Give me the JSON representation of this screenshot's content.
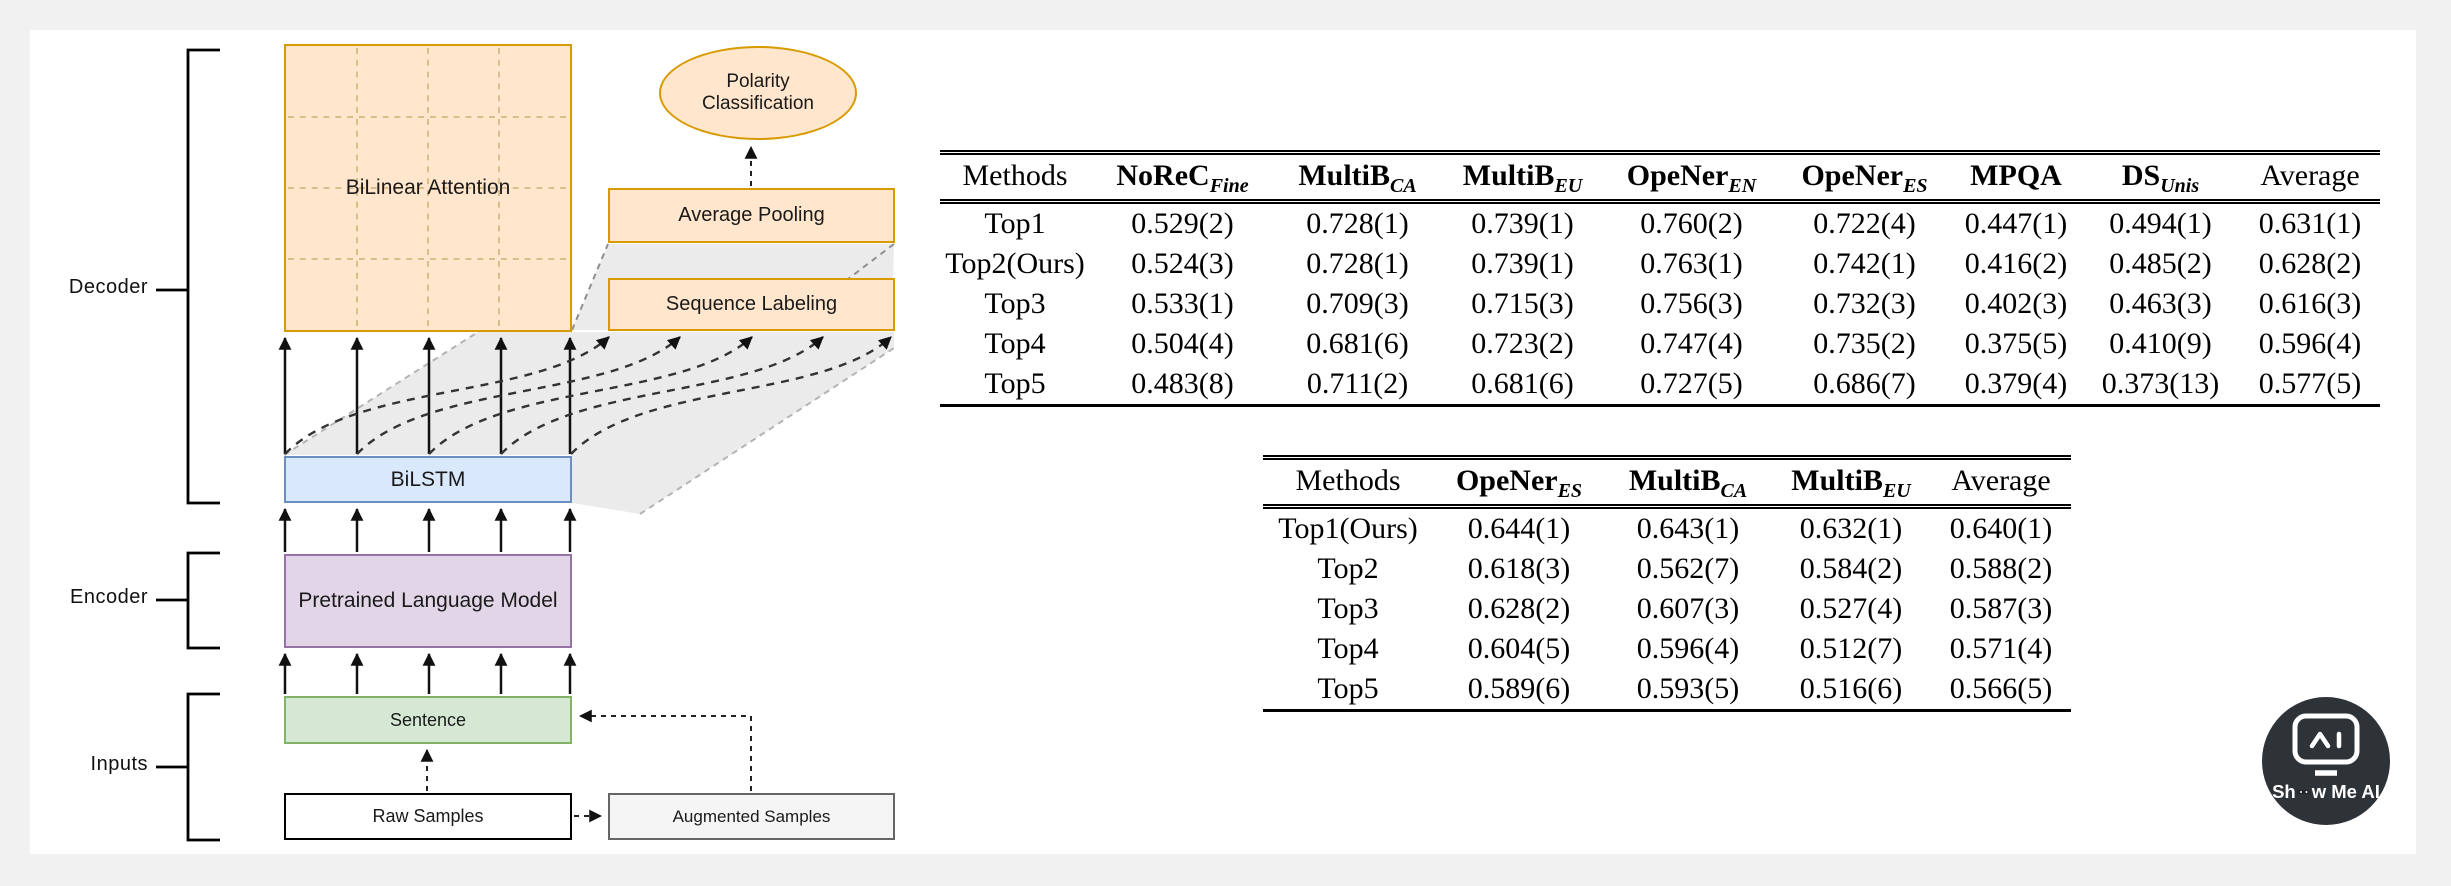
{
  "page": {
    "background_color": "#f1f1f1",
    "canvas_color": "#ffffff"
  },
  "diagram": {
    "group_labels": {
      "decoder": "Decoder",
      "encoder": "Encoder",
      "inputs": "Inputs"
    },
    "nodes": {
      "bilinear_attention": {
        "label": "BiLinear Attention",
        "fill": "#ffe6cc",
        "stroke": "#d79b00"
      },
      "polarity_classification": {
        "label": "Polarity Classification",
        "fill": "#ffe6cc",
        "stroke": "#d79b00"
      },
      "average_pooling": {
        "label": "Average Pooling",
        "fill": "#ffe6cc",
        "stroke": "#d79b00"
      },
      "sequence_labeling": {
        "label": "Sequence Labeling",
        "fill": "#ffe6cc",
        "stroke": "#d79b00"
      },
      "bilstm": {
        "label": "BiLSTM",
        "fill": "#dae8fc",
        "stroke": "#6c8ebf"
      },
      "pretrained_language_model": {
        "label": "Pretrained Language Model",
        "fill": "#e1d5e7",
        "stroke": "#9673a6"
      },
      "sentence": {
        "label": "Sentence",
        "fill": "#d5e8d4",
        "stroke": "#82b366"
      },
      "raw_samples": {
        "label": "Raw Samples",
        "fill": "#ffffff",
        "stroke": "#000000"
      },
      "augmented_samples": {
        "label": "Augmented Samples",
        "fill": "#f5f5f5",
        "stroke": "#666666"
      }
    }
  },
  "tables": {
    "main": {
      "headers": [
        {
          "label": "Methods",
          "bold": false
        },
        {
          "label": "NoReC",
          "sub": "Fine",
          "bold": true
        },
        {
          "label": "MultiB",
          "sub": "CA",
          "bold": true
        },
        {
          "label": "MultiB",
          "sub": "EU",
          "bold": true
        },
        {
          "label": "OpeNer",
          "sub": "EN",
          "bold": true
        },
        {
          "label": "OpeNer",
          "sub": "ES",
          "bold": true
        },
        {
          "label": "MPQA",
          "bold": true
        },
        {
          "label": "DS",
          "sub": "Unis",
          "bold": true
        },
        {
          "label": "Average",
          "bold": false
        }
      ],
      "rows": [
        [
          "Top1",
          "0.529(2)",
          "0.728(1)",
          "0.739(1)",
          "0.760(2)",
          "0.722(4)",
          "0.447(1)",
          "0.494(1)",
          "0.631(1)"
        ],
        [
          "Top2(Ours)",
          "0.524(3)",
          "0.728(1)",
          "0.739(1)",
          "0.763(1)",
          "0.742(1)",
          "0.416(2)",
          "0.485(2)",
          "0.628(2)"
        ],
        [
          "Top3",
          "0.533(1)",
          "0.709(3)",
          "0.715(3)",
          "0.756(3)",
          "0.732(3)",
          "0.402(3)",
          "0.463(3)",
          "0.616(3)"
        ],
        [
          "Top4",
          "0.504(4)",
          "0.681(6)",
          "0.723(2)",
          "0.747(4)",
          "0.735(2)",
          "0.375(5)",
          "0.410(9)",
          "0.596(4)"
        ],
        [
          "Top5",
          "0.483(8)",
          "0.711(2)",
          "0.681(6)",
          "0.727(5)",
          "0.686(7)",
          "0.379(4)",
          "0.373(13)",
          "0.577(5)"
        ]
      ]
    },
    "secondary": {
      "headers": [
        {
          "label": "Methods",
          "bold": false
        },
        {
          "label": "OpeNer",
          "sub": "ES",
          "bold": true
        },
        {
          "label": "MultiB",
          "sub": "CA",
          "bold": true
        },
        {
          "label": "MultiB",
          "sub": "EU",
          "bold": true
        },
        {
          "label": "Average",
          "bold": false
        }
      ],
      "rows": [
        [
          "Top1(Ours)",
          "0.644(1)",
          "0.643(1)",
          "0.632(1)",
          "0.640(1)"
        ],
        [
          "Top2",
          "0.618(3)",
          "0.562(7)",
          "0.584(2)",
          "0.588(2)"
        ],
        [
          "Top3",
          "0.628(2)",
          "0.607(3)",
          "0.527(4)",
          "0.587(3)"
        ],
        [
          "Top4",
          "0.604(5)",
          "0.596(4)",
          "0.512(7)",
          "0.571(4)"
        ],
        [
          "Top5",
          "0.589(6)",
          "0.593(5)",
          "0.516(6)",
          "0.566(5)"
        ]
      ]
    }
  },
  "logo": {
    "name": "Show Me AI",
    "text_pre": "Sh",
    "text_post": "w Me AI",
    "circle_color": "#2e3338",
    "accent_color": "#35b8c8"
  }
}
